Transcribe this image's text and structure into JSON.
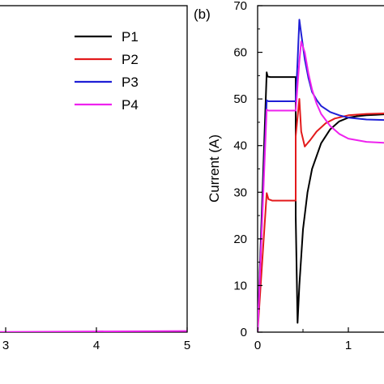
{
  "chart_data": [
    {
      "panel": "a",
      "type": "line",
      "xticks": [
        "3",
        "4",
        "5"
      ],
      "xlim": [
        2.05,
        5.0
      ],
      "legend": {
        "placement": "top-right",
        "entries": [
          {
            "label": "P1",
            "color": "#000000"
          },
          {
            "label": "P2",
            "color": "#e31a1c"
          },
          {
            "label": "P3",
            "color": "#1f1fd6"
          },
          {
            "label": "P4",
            "color": "#ee22ee"
          }
        ]
      },
      "series": [
        {
          "color": "#ee22ee",
          "x": [
            2.05,
            3.0,
            4.0,
            5.0
          ],
          "y": [
            0.0,
            0.05,
            0.15,
            0.25
          ]
        }
      ]
    },
    {
      "panel": "b",
      "panel_label": "(b)",
      "type": "line",
      "ylabel": "Current (A)",
      "ylim": [
        0,
        70
      ],
      "xlim": [
        0,
        1.4
      ],
      "yticks": [
        "0",
        "10",
        "20",
        "30",
        "40",
        "50",
        "60",
        "70"
      ],
      "xticks": [
        "0",
        "1"
      ],
      "series": [
        {
          "label": "P1",
          "color": "#000000",
          "x": [
            0,
            0.1,
            0.11,
            0.14,
            0.2,
            0.42,
            0.42,
            0.44,
            0.46,
            0.5,
            0.55,
            0.6,
            0.7,
            0.8,
            0.9,
            1.0,
            1.1,
            1.2,
            1.3,
            1.4
          ],
          "y": [
            0,
            55.7,
            54.8,
            54.7,
            54.7,
            54.7,
            25.0,
            2.0,
            10.0,
            22.0,
            30.0,
            35.0,
            40.5,
            43.5,
            45.2,
            46.0,
            46.3,
            46.5,
            46.6,
            46.7
          ]
        },
        {
          "label": "P2",
          "color": "#e31a1c",
          "x": [
            0,
            0.1,
            0.12,
            0.16,
            0.2,
            0.42,
            0.42,
            0.46,
            0.48,
            0.52,
            0.58,
            0.65,
            0.75,
            0.85,
            1.0,
            1.2,
            1.4
          ],
          "y": [
            0,
            29.8,
            28.5,
            28.2,
            28.2,
            28.2,
            42.0,
            50.0,
            43.0,
            39.8,
            41.2,
            43.0,
            44.8,
            45.8,
            46.5,
            46.8,
            46.9
          ]
        },
        {
          "label": "P3",
          "color": "#1f1fd6",
          "x": [
            0,
            0.1,
            0.12,
            0.16,
            0.2,
            0.42,
            0.44,
            0.46,
            0.48,
            0.52,
            0.56,
            0.6,
            0.65,
            0.7,
            0.8,
            0.9,
            1.0,
            1.2,
            1.4
          ],
          "y": [
            0,
            49.7,
            49.5,
            49.5,
            49.5,
            49.5,
            58.0,
            67.0,
            64.0,
            58.5,
            54.5,
            51.5,
            49.8,
            48.5,
            47.2,
            46.5,
            46.0,
            45.6,
            45.5
          ]
        },
        {
          "label": "P4",
          "color": "#ee22ee",
          "x": [
            0,
            0.1,
            0.12,
            0.16,
            0.2,
            0.42,
            0.46,
            0.48,
            0.52,
            0.56,
            0.6,
            0.65,
            0.7,
            0.8,
            0.9,
            1.0,
            1.2,
            1.4
          ],
          "y": [
            0,
            47.7,
            47.5,
            47.5,
            47.5,
            47.5,
            58.0,
            62.3,
            60.0,
            55.5,
            52.0,
            49.0,
            46.8,
            44.2,
            42.5,
            41.5,
            40.8,
            40.6
          ]
        }
      ]
    }
  ]
}
